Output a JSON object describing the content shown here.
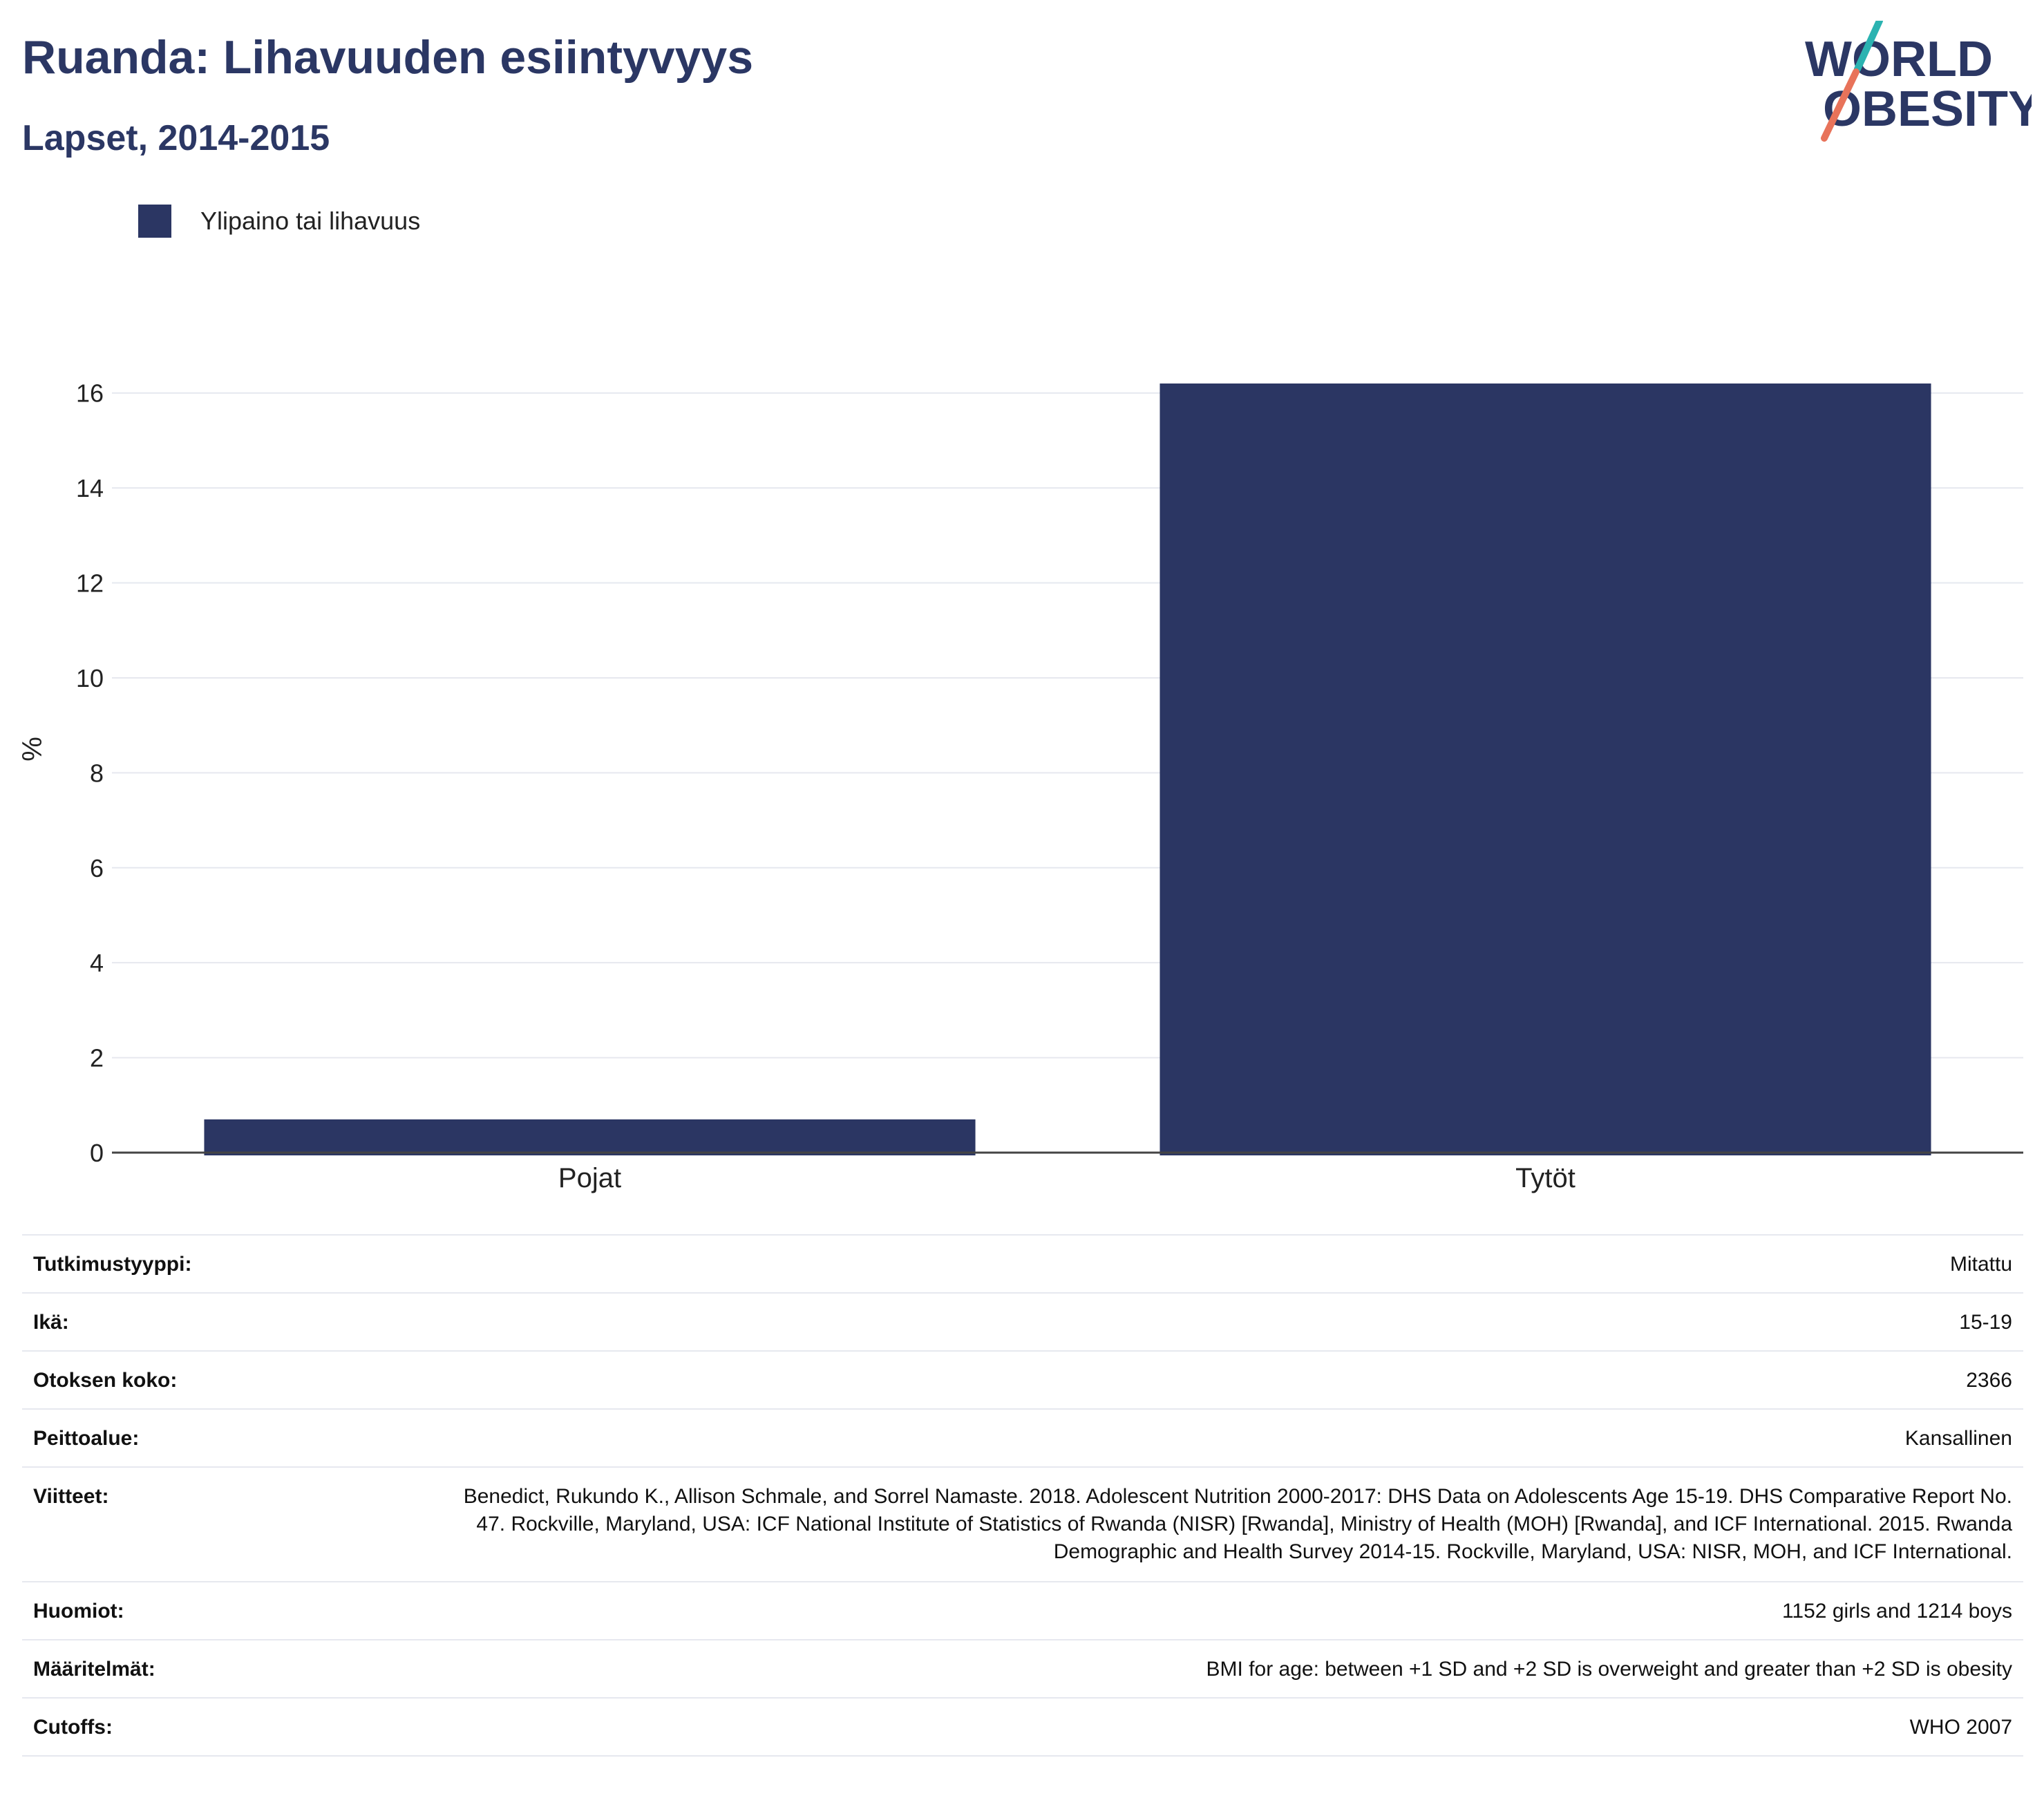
{
  "header": {
    "title": "Ruanda: Lihavuuden esiintyvyys",
    "subtitle": "Lapset, 2014-2015"
  },
  "logo": {
    "line1": "WORLD",
    "line2": "OBESITY",
    "accent_teal": "#2bb3b1",
    "accent_coral": "#e8735a",
    "text_color": "#2b3764"
  },
  "colors": {
    "bar": "#2b3663",
    "title": "#2b3764",
    "grid": "#e6e8ef",
    "axis": "#444444"
  },
  "chart_data": {
    "type": "bar",
    "categories": [
      "Pojat",
      "Tytöt"
    ],
    "series": [
      {
        "name": "Ylipaino tai lihavuus",
        "values": [
          0.7,
          16.2
        ]
      }
    ],
    "title": "",
    "xlabel": "",
    "ylabel": "%",
    "ylim": [
      0,
      17
    ],
    "yticks": [
      0,
      2,
      4,
      6,
      8,
      10,
      12,
      14,
      16
    ],
    "grid": true,
    "legend": "top-left"
  },
  "info": {
    "rows": [
      {
        "label": "Tutkimustyyppi:",
        "value": "Mitattu"
      },
      {
        "label": "Ikä:",
        "value": "15-19"
      },
      {
        "label": "Otoksen koko:",
        "value": "2366"
      },
      {
        "label": "Peittoalue:",
        "value": "Kansallinen"
      },
      {
        "label": "Viitteet:",
        "value": "Benedict, Rukundo K., Allison Schmale, and Sorrel Namaste. 2018. Adolescent Nutrition 2000-2017: DHS Data on Adolescents Age 15-19. DHS Comparative Report No. 47. Rockville, Maryland, USA: ICF National Institute of Statistics of Rwanda (NISR) [Rwanda], Ministry of Health (MOH) [Rwanda], and ICF International. 2015. Rwanda Demographic and Health Survey 2014-15. Rockville, Maryland, USA: NISR, MOH, and ICF International."
      },
      {
        "label": "Huomiot:",
        "value": "1152 girls and 1214 boys"
      },
      {
        "label": "Määritelmät:",
        "value": "BMI for age: between +1 SD and +2 SD is overweight and greater than +2 SD is obesity"
      },
      {
        "label": "Cutoffs:",
        "value": "WHO 2007"
      }
    ]
  }
}
